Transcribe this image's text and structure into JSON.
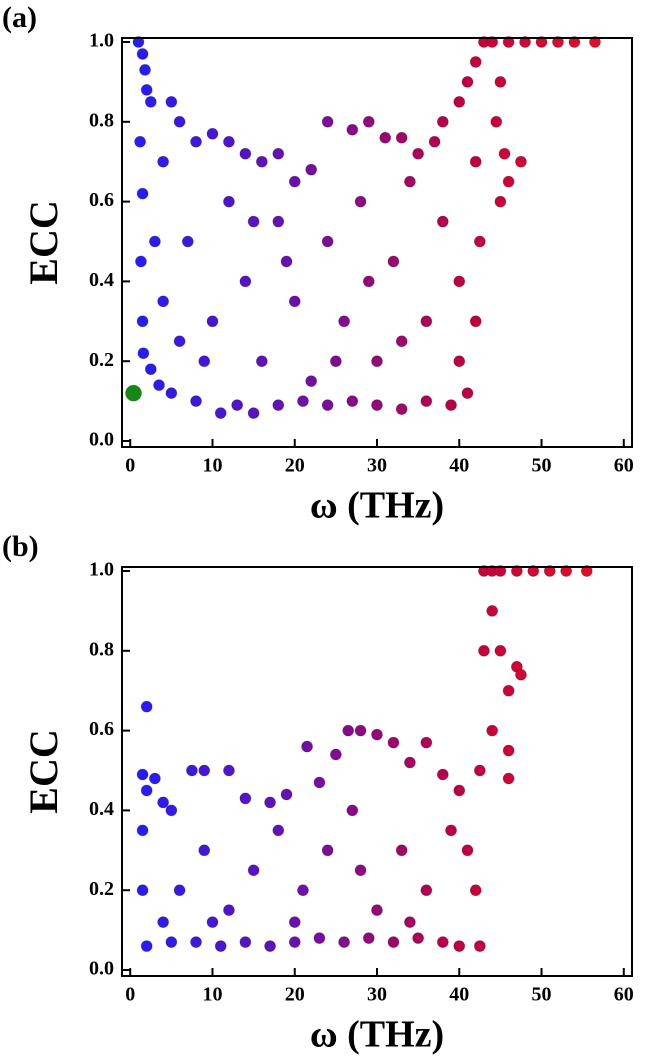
{
  "chart_data": [
    {
      "type": "scatter",
      "panel": "(a)",
      "x_label": "ω (THz)",
      "y_label": "ECC",
      "xlim": [
        -1,
        61
      ],
      "xticks": [
        0,
        10,
        20,
        30,
        40,
        50,
        60
      ],
      "ylim": [
        -0.015,
        1.01
      ],
      "yticks": [
        {
          "value": 0,
          "label": "0.0"
        },
        0.2,
        0.4,
        0.6,
        0.8,
        {
          "value": 1,
          "label": "1.0"
        }
      ],
      "series": [
        {
          "color_scale": [
            "#1e1eff",
            "#6a10b0",
            "#c00040",
            "#ee1020"
          ],
          "x": [
            1,
            1.5,
            1.8,
            2,
            2.5,
            1.2,
            1.5,
            1.3,
            1.5,
            1.6,
            2.5,
            3.5,
            5,
            5,
            6,
            4,
            3,
            4,
            6,
            8,
            10,
            12,
            14,
            16,
            18,
            20,
            22,
            24,
            27,
            29,
            31,
            33,
            35,
            37,
            38,
            40,
            41,
            42,
            43,
            44,
            46,
            48,
            50,
            52,
            54,
            56.5,
            45,
            44.5,
            45.5,
            45,
            47.5,
            46,
            8,
            11,
            13,
            15,
            18,
            21,
            24,
            27,
            30,
            33,
            36,
            39,
            41,
            42,
            42.5,
            42,
            7,
            10,
            12,
            14,
            16,
            18,
            20,
            22,
            24,
            26,
            28,
            30,
            32,
            34,
            36,
            38,
            40,
            40,
            9,
            25,
            33,
            19,
            29,
            15
          ],
          "values": [
            1.0,
            0.97,
            0.93,
            0.88,
            0.85,
            0.75,
            0.62,
            0.45,
            0.3,
            0.22,
            0.18,
            0.14,
            0.12,
            0.85,
            0.8,
            0.7,
            0.5,
            0.35,
            0.25,
            0.75,
            0.77,
            0.75,
            0.72,
            0.7,
            0.72,
            0.65,
            0.68,
            0.8,
            0.78,
            0.8,
            0.76,
            0.76,
            0.72,
            0.75,
            0.8,
            0.85,
            0.9,
            0.95,
            1.0,
            1.0,
            1.0,
            1.0,
            1.0,
            1.0,
            1.0,
            1.0,
            0.9,
            0.8,
            0.72,
            0.6,
            0.7,
            0.65,
            0.1,
            0.07,
            0.09,
            0.07,
            0.09,
            0.1,
            0.09,
            0.1,
            0.09,
            0.08,
            0.1,
            0.09,
            0.12,
            0.3,
            0.5,
            0.7,
            0.5,
            0.3,
            0.6,
            0.4,
            0.2,
            0.55,
            0.35,
            0.15,
            0.5,
            0.3,
            0.6,
            0.2,
            0.45,
            0.65,
            0.3,
            0.55,
            0.2,
            0.4,
            0.2,
            0.2,
            0.25,
            0.45,
            0.4,
            0.55
          ]
        },
        {
          "color": "#138a13",
          "x": [
            0.4
          ],
          "values": [
            0.12
          ]
        }
      ]
    },
    {
      "type": "scatter",
      "panel": "(b)",
      "x_label": "ω (THz)",
      "y_label": "ECC",
      "xlim": [
        -1,
        61
      ],
      "xticks": [
        0,
        10,
        20,
        30,
        40,
        50,
        60
      ],
      "ylim": [
        -0.015,
        1.01
      ],
      "yticks": [
        {
          "value": 0,
          "label": "0.0"
        },
        0.2,
        0.4,
        0.6,
        0.8,
        {
          "value": 1,
          "label": "1.0"
        }
      ],
      "series": [
        {
          "color_scale": [
            "#1e1eff",
            "#6a10b0",
            "#c00040",
            "#ee1020"
          ],
          "x": [
            2,
            1.5,
            2,
            1.5,
            1.5,
            2,
            3,
            4,
            5,
            7.5,
            9,
            12,
            14,
            17,
            19,
            21.5,
            23,
            25,
            26.5,
            28,
            30,
            32,
            34,
            36,
            38,
            40,
            41,
            42,
            42.5,
            43,
            43,
            44,
            45,
            47,
            49,
            51,
            53,
            55.5,
            44,
            45,
            46,
            47,
            47.5,
            46,
            46,
            44,
            42.5,
            5,
            8,
            11,
            14,
            17,
            20,
            23,
            26,
            29,
            32,
            35,
            38,
            40,
            6,
            9,
            12,
            15,
            18,
            21,
            24,
            27,
            30,
            33,
            36,
            39,
            4,
            10,
            20,
            28,
            34
          ],
          "values": [
            0.66,
            0.49,
            0.45,
            0.35,
            0.2,
            0.06,
            0.48,
            0.42,
            0.4,
            0.5,
            0.5,
            0.5,
            0.43,
            0.42,
            0.44,
            0.56,
            0.47,
            0.54,
            0.6,
            0.6,
            0.59,
            0.57,
            0.52,
            0.57,
            0.49,
            0.45,
            0.3,
            0.2,
            0.5,
            0.8,
            1.0,
            1.0,
            1.0,
            1.0,
            1.0,
            1.0,
            1.0,
            1.0,
            0.9,
            0.8,
            0.7,
            0.76,
            0.74,
            0.55,
            0.48,
            0.6,
            0.06,
            0.07,
            0.07,
            0.06,
            0.07,
            0.06,
            0.07,
            0.08,
            0.07,
            0.08,
            0.07,
            0.08,
            0.07,
            0.06,
            0.2,
            0.3,
            0.15,
            0.25,
            0.35,
            0.2,
            0.3,
            0.4,
            0.15,
            0.3,
            0.2,
            0.35,
            0.12,
            0.12,
            0.12,
            0.25,
            0.12
          ]
        }
      ]
    }
  ]
}
